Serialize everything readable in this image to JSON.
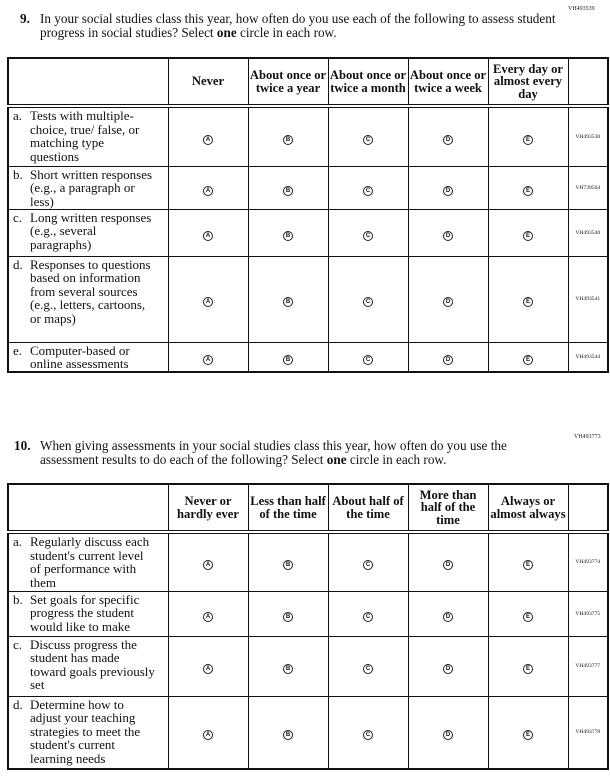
{
  "q9": {
    "code": "VH493539",
    "number": "9.",
    "text_before": "In your social studies class this year, how often do you use each of the following to assess student progress in social studies? Select ",
    "text_bold": "one",
    "text_after": " circle in each row.",
    "columns": [
      "Never",
      "About once or twice a year",
      "About once or twice a month",
      "About once or twice a week",
      "Every day or almost every day"
    ],
    "bubbles": [
      "A",
      "B",
      "C",
      "D",
      "E"
    ],
    "rows": [
      {
        "letter": "a.",
        "text": "Tests with multiple-choice, true/ false, or matching type questions",
        "code": "VH493530"
      },
      {
        "letter": "b.",
        "text": "Short written responses (e.g., a paragraph or less)",
        "code": "VH739504"
      },
      {
        "letter": "c.",
        "text": "Long written responses (e.g., several paragraphs)",
        "code": "VH493540"
      },
      {
        "letter": "d.",
        "text": "Responses to questions based on information from several sources (e.g., letters, cartoons, or maps)",
        "code": "VH493541"
      },
      {
        "letter": "e.",
        "text": "Computer-based or online assessments",
        "code": "VH493544"
      }
    ]
  },
  "q10": {
    "code": "VH493773",
    "number": "10.",
    "text_before": "When giving assessments in your social studies class this year, how often do you use the assessment results to do each of the following? Select ",
    "text_bold": "one",
    "text_after": " circle in each row.",
    "columns": [
      "Never or hardly ever",
      "Less than half of the time",
      "About half of the time",
      "More than half of the time",
      "Always or almost always"
    ],
    "bubbles": [
      "A",
      "B",
      "C",
      "D",
      "E"
    ],
    "rows": [
      {
        "letter": "a.",
        "text": "Regularly discuss each student's current level of performance with them",
        "code": "VH493774"
      },
      {
        "letter": "b.",
        "text": "Set goals for specific progress the student would like to make",
        "code": "VH493775"
      },
      {
        "letter": "c.",
        "text": "Discuss progress the student has made toward goals previously set",
        "code": "VH493777"
      },
      {
        "letter": "d.",
        "text": "Determine how to adjust your teaching strategies to meet the student's current learning needs",
        "code": "VH493778"
      }
    ]
  }
}
